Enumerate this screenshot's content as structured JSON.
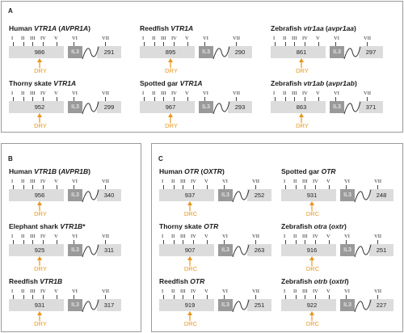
{
  "colors": {
    "motif": "#e8961b",
    "bar_light": "#dcdcdc",
    "bar_dark": "#9a9a9a",
    "border": "#9a9a9a"
  },
  "roman_labels": [
    "I",
    "II",
    "III",
    "IV",
    "V",
    "VI",
    "VII"
  ],
  "loop_label": "IL3",
  "panels": [
    {
      "letter": "A",
      "items": [
        {
          "title_prefix": "Human ",
          "title_gene": "VTR1A",
          "title_suffix": " (",
          "title_alias": "AVPR1A",
          "title_end": ")",
          "left_count": "986",
          "right_count": "291",
          "motif": "DRY"
        },
        {
          "title_prefix": "Reedfish ",
          "title_gene": "VTR1A",
          "title_suffix": "",
          "title_alias": "",
          "title_end": "",
          "left_count": "895",
          "right_count": "290",
          "motif": "DRY"
        },
        {
          "title_prefix": "Zebrafish ",
          "title_gene": "vtr1aa",
          "title_suffix": " (",
          "title_alias": "avpr1aa",
          "title_end": ")",
          "left_count": "861",
          "right_count": "297",
          "motif": "DRY"
        },
        {
          "title_prefix": "Thorny skate ",
          "title_gene": "VTR1A",
          "title_suffix": "",
          "title_alias": "",
          "title_end": "",
          "left_count": "952",
          "right_count": "299",
          "motif": "DRY"
        },
        {
          "title_prefix": "Spotted gar ",
          "title_gene": "VTR1A",
          "title_suffix": "",
          "title_alias": "",
          "title_end": "",
          "left_count": "967",
          "right_count": "293",
          "motif": "DRY"
        },
        {
          "title_prefix": "Zebrafish ",
          "title_gene": "vtr1ab",
          "title_suffix": " (",
          "title_alias": "avpr1ab",
          "title_end": ")",
          "left_count": "863",
          "right_count": "371",
          "motif": "DRY"
        }
      ]
    },
    {
      "letter": "B",
      "items": [
        {
          "title_prefix": "Human ",
          "title_gene": "VTR1B",
          "title_suffix": " (",
          "title_alias": "AVPR1B",
          "title_end": ")",
          "left_count": "956",
          "right_count": "340",
          "motif": "DRY"
        },
        {
          "title_prefix": "Elephant shark ",
          "title_gene": "VTR1B",
          "title_suffix": "",
          "title_alias": "",
          "title_end": "*",
          "left_count": "925",
          "right_count": "311",
          "motif": "DRY"
        },
        {
          "title_prefix": "Reedfish ",
          "title_gene": "VTR1B",
          "title_suffix": "",
          "title_alias": "",
          "title_end": "",
          "left_count": "931",
          "right_count": "317",
          "motif": "DRY"
        }
      ]
    },
    {
      "letter": "C",
      "items": [
        {
          "title_prefix": "Human ",
          "title_gene": "OTR",
          "title_suffix": " (",
          "title_alias": "OXTR",
          "title_end": ")",
          "left_count": "937",
          "right_count": "252",
          "motif": "DRC"
        },
        {
          "title_prefix": "Spotted gar ",
          "title_gene": "OTR",
          "title_suffix": "",
          "title_alias": "",
          "title_end": "",
          "left_count": "931",
          "right_count": "248",
          "motif": "DRC"
        },
        {
          "title_prefix": "Thorny skate ",
          "title_gene": "OTR",
          "title_suffix": "",
          "title_alias": "",
          "title_end": "",
          "left_count": "907",
          "right_count": "263",
          "motif": "DRC"
        },
        {
          "title_prefix": "Zebrafish ",
          "title_gene": "otra",
          "title_suffix": " (",
          "title_alias": "oxtr",
          "title_end": ")",
          "left_count": "916",
          "right_count": "251",
          "motif": "DRC"
        },
        {
          "title_prefix": "Reedfish ",
          "title_gene": "OTR",
          "title_suffix": "",
          "title_alias": "",
          "title_end": "",
          "left_count": "919",
          "right_count": "251",
          "motif": "DRC"
        },
        {
          "title_prefix": "Zebrafish ",
          "title_gene": "otrb",
          "title_suffix": " (",
          "title_alias": "oxtrl",
          "title_end": ")",
          "left_count": "922",
          "right_count": "227",
          "motif": "DRC"
        }
      ]
    }
  ]
}
